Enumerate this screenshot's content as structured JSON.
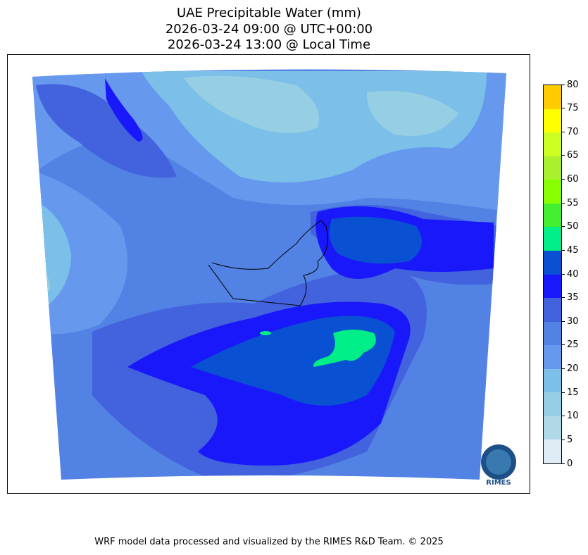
{
  "title": {
    "line1": "UAE Precipitable Water (mm)",
    "line2": "2026-03-24 09:00 @ UTC+00:00",
    "line3": "2026-03-24 13:00 @ Local Time"
  },
  "colorbar": {
    "levels": [
      0,
      5,
      10,
      15,
      20,
      25,
      30,
      35,
      40,
      45,
      50,
      55,
      60,
      65,
      70,
      75,
      80
    ],
    "tick_labels": [
      "0",
      "5",
      "10",
      "15",
      "20",
      "25",
      "30",
      "35",
      "40",
      "45",
      "50",
      "55",
      "60",
      "65",
      "70",
      "75",
      "80"
    ],
    "colors": [
      "#deecf5",
      "#b0d8e6",
      "#96cfe4",
      "#7cc0ea",
      "#6699ee",
      "#5282e4",
      "#4262de",
      "#1818fa",
      "#0a50d2",
      "#00ee88",
      "#44ee30",
      "#88ff00",
      "#aaf02c",
      "#ccff22",
      "#ffff00",
      "#ffcc00"
    ]
  },
  "logo": {
    "text": "RIMES"
  },
  "footer": "WRF model data processed and visualized by the RIMES R&D Team. © 2025"
}
